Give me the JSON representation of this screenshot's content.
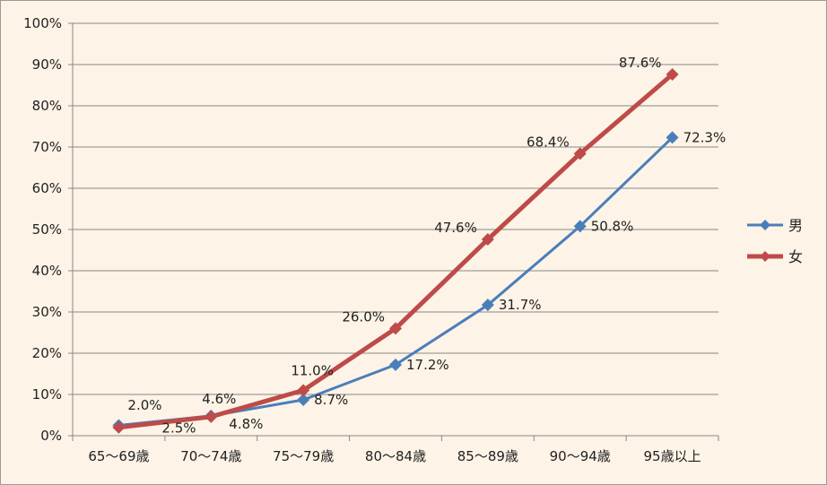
{
  "chart_data": {
    "type": "line",
    "categories": [
      "65～69歳",
      "70～74歳",
      "75～79歳",
      "80～84歳",
      "85～89歳",
      "90～94歳",
      "95歳以上"
    ],
    "ylim": [
      0,
      100
    ],
    "yticks": [
      "0%",
      "10%",
      "20%",
      "30%",
      "40%",
      "50%",
      "60%",
      "70%",
      "80%",
      "90%",
      "100%"
    ],
    "grid": true,
    "legend_position": "right",
    "series": [
      {
        "name": "男",
        "color": "#4a7ebb",
        "values": [
          2.5,
          4.8,
          8.7,
          17.2,
          31.7,
          50.8,
          72.3
        ],
        "labels": [
          "2.5%",
          "4.8%",
          "8.7%",
          "17.2%",
          "31.7%",
          "50.8%",
          "72.3%"
        ]
      },
      {
        "name": "女",
        "color": "#be4b48",
        "values": [
          2.0,
          4.6,
          11.0,
          26.0,
          47.6,
          68.4,
          87.6
        ],
        "labels": [
          "2.0%",
          "4.6%",
          "11.0%",
          "26.0%",
          "47.6%",
          "68.4%",
          "87.6%"
        ]
      }
    ]
  }
}
